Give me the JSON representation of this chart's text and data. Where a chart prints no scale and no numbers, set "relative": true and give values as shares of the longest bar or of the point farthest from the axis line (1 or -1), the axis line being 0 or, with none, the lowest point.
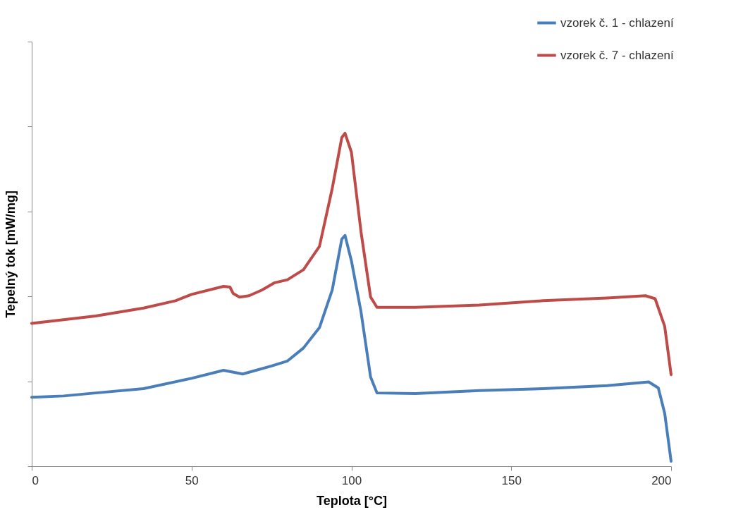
{
  "chart_data": {
    "type": "line",
    "relative": true,
    "xlabel": "Teplota [°C]",
    "ylabel": "Tepelný tok [mW/mg]",
    "xlim": [
      0,
      200
    ],
    "xticks": [
      0,
      50,
      100,
      150,
      200
    ],
    "legend": "top right",
    "grid": false,
    "marker": "none",
    "line_style": "solid",
    "series": [
      {
        "name": "vzorek č. 1 - chlazení",
        "color": "#4a7ebb",
        "x": [
          0,
          10,
          20,
          35,
          50,
          60,
          66,
          75,
          80,
          85,
          90,
          94,
          97,
          98,
          100,
          103,
          106,
          108,
          120,
          140,
          160,
          180,
          193,
          196,
          198,
          200
        ],
        "values": [
          0.207,
          0.211,
          0.22,
          0.233,
          0.264,
          0.288,
          0.277,
          0.301,
          0.316,
          0.355,
          0.416,
          0.529,
          0.682,
          0.693,
          0.617,
          0.464,
          0.268,
          0.22,
          0.218,
          0.227,
          0.233,
          0.242,
          0.253,
          0.235,
          0.159,
          0.015
        ]
      },
      {
        "name": "vzorek č. 7 - chlazení",
        "color": "#be4b48",
        "x": [
          0,
          10,
          20,
          35,
          45,
          50,
          60,
          62,
          63,
          65,
          68,
          72,
          76,
          80,
          85,
          90,
          94,
          97,
          98,
          100,
          103,
          106,
          108,
          120,
          140,
          160,
          180,
          192,
          195,
          198,
          200
        ],
        "values": [
          0.429,
          0.44,
          0.451,
          0.475,
          0.497,
          0.516,
          0.54,
          0.538,
          0.519,
          0.508,
          0.512,
          0.529,
          0.551,
          0.56,
          0.59,
          0.66,
          0.834,
          0.987,
          1,
          0.943,
          0.704,
          0.508,
          0.477,
          0.477,
          0.484,
          0.497,
          0.505,
          0.512,
          0.503,
          0.42,
          0.275
        ]
      }
    ]
  }
}
